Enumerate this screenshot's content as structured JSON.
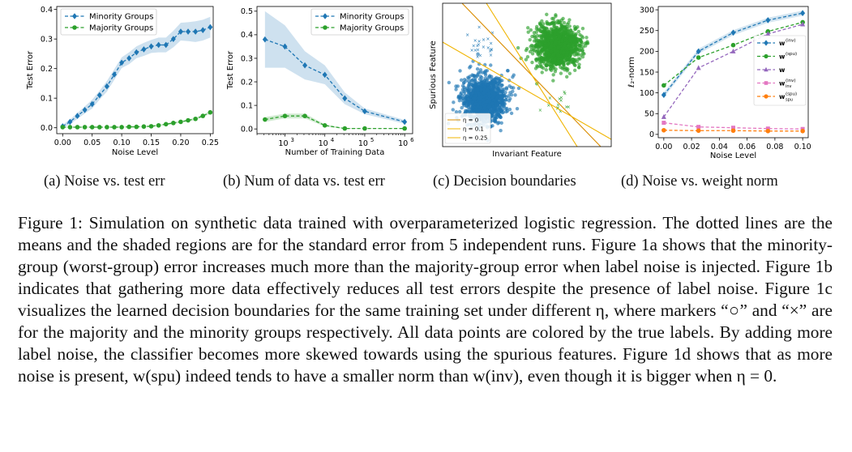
{
  "colors": {
    "blue": "#1f77b4",
    "green": "#2ca02c",
    "purple": "#9467bd",
    "pink": "#e377c2",
    "orange": "#ff7f0e",
    "band": "#c6dbef",
    "yellow": "#f0b400",
    "darkorange": "#d98c00"
  },
  "subcaptions": [
    "(a) Noise vs. test err",
    "(b) Num of data vs. test err",
    "(c) Decision boundaries",
    "(d) Noise vs. weight norm"
  ],
  "caption": {
    "label": "Figure 1:",
    "text": "Simulation on synthetic data trained with overparameterized logistic regression. The dotted lines are the means and the shaded regions are for the standard error from 5 independent runs. Figure 1a shows that the minority-group (worst-group) error increases much more than the majority-group error when label noise is injected. Figure 1b indicates that gathering more data effectively reduces all test errors despite the presence of label noise. Figure 1c visualizes the learned decision boundaries for the same training set under different η, where markers “○” and “×” are for the majority and the minority groups respectively. All data points are colored by the true labels. By adding more label noise, the classifier becomes more skewed towards using the spurious features. Figure 1d shows that as more noise is present, w(spu) indeed tends to have a smaller norm than w(inv), even though it is bigger when η = 0."
  },
  "chart_data": [
    {
      "type": "line",
      "xlabel": "Noise Level",
      "ylabel": "Test Error",
      "xlim": [
        -0.01,
        0.255
      ],
      "ylim": [
        -0.02,
        0.41
      ],
      "xticks": [
        "0.00",
        "0.05",
        "0.10",
        "0.15",
        "0.20",
        "0.25"
      ],
      "yticks": [
        "0.0",
        "0.1",
        "0.2",
        "0.3",
        "0.4"
      ],
      "x": [
        0,
        0.0125,
        0.025,
        0.0375,
        0.05,
        0.0625,
        0.075,
        0.0875,
        0.1,
        0.1125,
        0.125,
        0.1375,
        0.15,
        0.1625,
        0.175,
        0.1875,
        0.2,
        0.2125,
        0.225,
        0.2375,
        0.25
      ],
      "legend": "top-left",
      "series": [
        {
          "name": "Minority Groups",
          "marker": "diamond",
          "values": [
            0.005,
            0.02,
            0.04,
            0.06,
            0.08,
            0.11,
            0.14,
            0.18,
            0.22,
            0.235,
            0.255,
            0.265,
            0.275,
            0.28,
            0.28,
            0.3,
            0.325,
            0.325,
            0.325,
            0.33,
            0.34
          ],
          "band": [
            0.005,
            0.008,
            0.01,
            0.012,
            0.015,
            0.015,
            0.018,
            0.018,
            0.018,
            0.02,
            0.02,
            0.022,
            0.022,
            0.025,
            0.025,
            0.028,
            0.03,
            0.032,
            0.035,
            0.035,
            0.035
          ]
        },
        {
          "name": "Majority Groups",
          "marker": "circle",
          "values": [
            0.002,
            0.002,
            0.002,
            0.002,
            0.002,
            0.002,
            0.002,
            0.002,
            0.002,
            0.003,
            0.003,
            0.004,
            0.005,
            0.008,
            0.012,
            0.016,
            0.02,
            0.025,
            0.03,
            0.04,
            0.052
          ],
          "band": [
            0.001,
            0.001,
            0.001,
            0.001,
            0.001,
            0.001,
            0.001,
            0.001,
            0.001,
            0.001,
            0.001,
            0.001,
            0.002,
            0.002,
            0.002,
            0.003,
            0.003,
            0.003,
            0.004,
            0.004,
            0.005
          ]
        }
      ]
    },
    {
      "type": "line",
      "xlabel": "Number of Training Data",
      "ylabel": "Test Error",
      "xscale": "log",
      "xlim": [
        2.3,
        6.2
      ],
      "ylim": [
        -0.02,
        0.52
      ],
      "xticks": [
        {
          "label": "10",
          "exp": "3",
          "v": 3
        },
        {
          "label": "10",
          "exp": "4",
          "v": 4
        },
        {
          "label": "10",
          "exp": "5",
          "v": 5
        },
        {
          "label": "10",
          "exp": "6",
          "v": 6
        }
      ],
      "yticks": [
        "0.0",
        "0.1",
        "0.2",
        "0.3",
        "0.4",
        "0.5"
      ],
      "legend": "top-right",
      "series": [
        {
          "name": "Minority Groups",
          "marker": "diamond",
          "logx": [
            2.5,
            3,
            3.5,
            4,
            4.5,
            5,
            6
          ],
          "values": [
            0.38,
            0.35,
            0.27,
            0.23,
            0.13,
            0.075,
            0.03
          ],
          "band": [
            0.12,
            0.09,
            0.06,
            0.04,
            0.025,
            0.012,
            0.008
          ]
        },
        {
          "name": "Majority Groups",
          "marker": "circle",
          "logx": [
            2.5,
            3,
            3.5,
            4,
            4.5,
            5,
            6
          ],
          "values": [
            0.04,
            0.055,
            0.055,
            0.015,
            0.002,
            0.002,
            0.002
          ],
          "band": [
            0.01,
            0.01,
            0.01,
            0.005,
            0.002,
            0.001,
            0.001
          ]
        }
      ]
    },
    {
      "type": "scatter",
      "xlabel": "Invariant Feature",
      "ylabel": "Spurious Feature",
      "legend": "bottom-left",
      "lines": [
        {
          "name": "η = 0"
        },
        {
          "name": "η = 0.1"
        },
        {
          "name": "η = 0.25"
        }
      ]
    },
    {
      "type": "line",
      "xlabel": "Noise Level",
      "ylabel": "ℓ₂-norm",
      "xlim": [
        -0.004,
        0.104
      ],
      "ylim": [
        -8,
        308
      ],
      "xticks": [
        "0.00",
        "0.02",
        "0.04",
        "0.06",
        "0.08",
        "0.10"
      ],
      "yticks": [
        "0",
        "50",
        "100",
        "150",
        "200",
        "250",
        "300"
      ],
      "x": [
        0,
        0.025,
        0.05,
        0.075,
        0.1
      ],
      "legend": "right",
      "series": [
        {
          "name": "w",
          "sup": "(inv)",
          "marker": "diamond",
          "color": "blue",
          "values": [
            95,
            200,
            245,
            275,
            292
          ]
        },
        {
          "name": "w",
          "sup": "(spu)",
          "marker": "circle",
          "color": "green",
          "values": [
            118,
            185,
            215,
            248,
            270
          ]
        },
        {
          "name": "w",
          "sup": "",
          "marker": "triangle",
          "color": "purple",
          "values": [
            42,
            160,
            200,
            242,
            265
          ]
        },
        {
          "name": "w",
          "sup": "(inv)",
          "sub": "inv",
          "marker": "square",
          "color": "pink",
          "values": [
            28,
            18,
            16,
            14,
            13
          ]
        },
        {
          "name": "w",
          "sup": "(spu)",
          "sub": "spu",
          "marker": "circle",
          "color": "orange",
          "values": [
            10,
            9,
            9,
            8,
            8
          ]
        }
      ]
    }
  ]
}
